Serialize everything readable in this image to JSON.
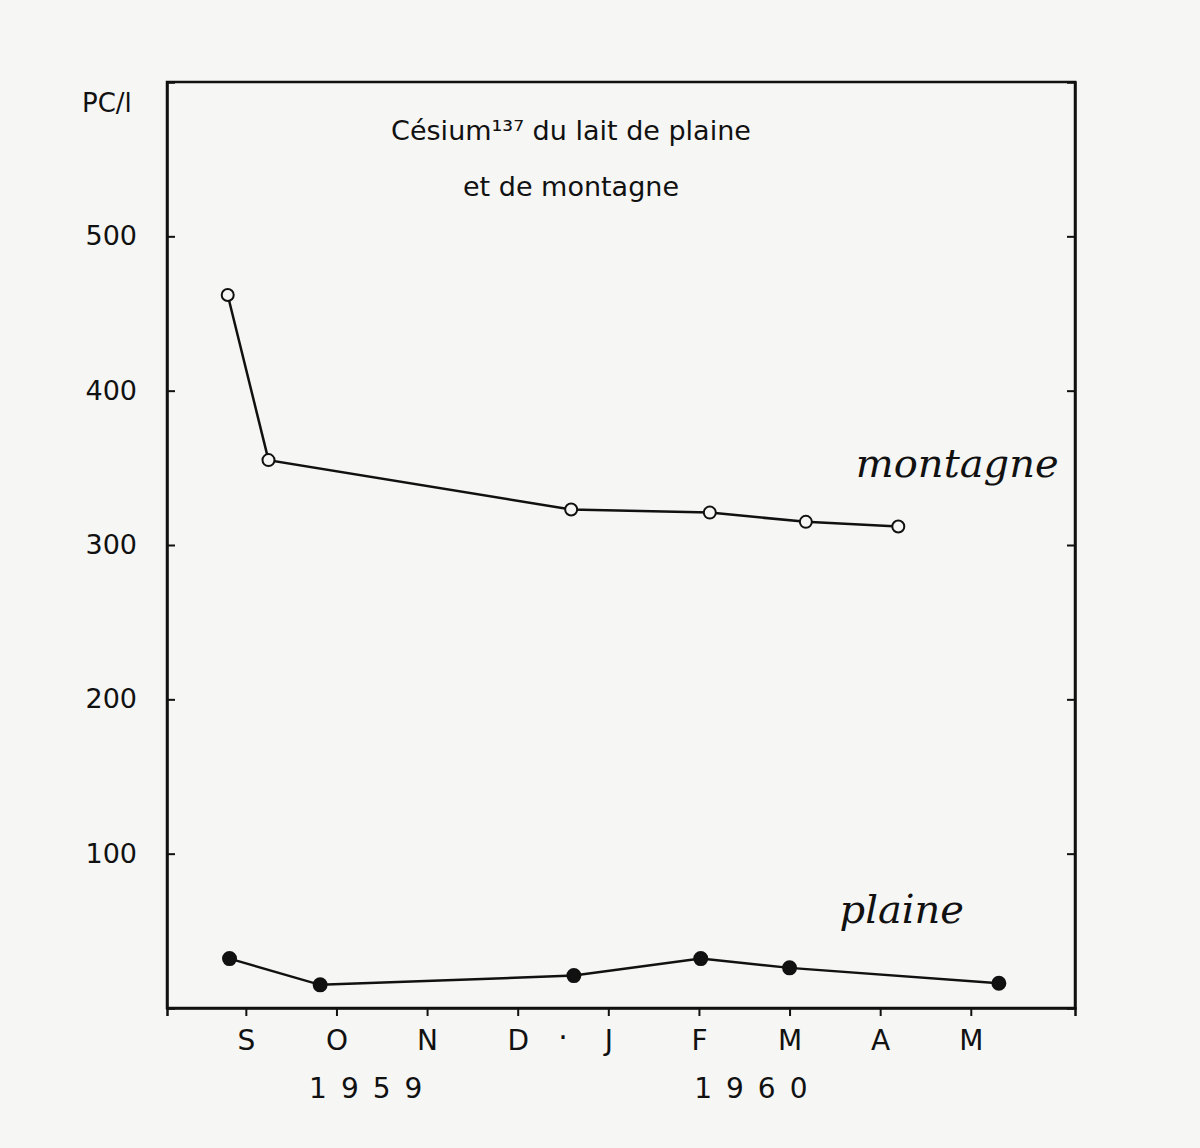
{
  "chart_data": {
    "type": "line",
    "title": "Césium¹³⁷ du lait de plaine\net de montagne",
    "y_label": "PC/l",
    "xlim": [
      -0.37,
      9.65
    ],
    "xticks": [
      {
        "value": 0.5,
        "label": "S"
      },
      {
        "value": 1.5,
        "label": "O"
      },
      {
        "value": 2.5,
        "label": "N"
      },
      {
        "value": 3.5,
        "label": "D"
      },
      {
        "value": 4.5,
        "label": "J"
      },
      {
        "value": 5.5,
        "label": "F"
      },
      {
        "value": 6.5,
        "label": "M"
      },
      {
        "value": 7.5,
        "label": "A"
      },
      {
        "value": 8.5,
        "label": "M"
      }
    ],
    "ylim": [
      0,
      600
    ],
    "yticks": [
      100,
      200,
      300,
      400,
      500
    ],
    "annotations": [
      {
        "text": "·",
        "x": 4.0
      },
      {
        "text": "1959",
        "x": 1.9
      },
      {
        "text": "1960",
        "x": 6.15
      }
    ],
    "series": [
      {
        "name": "montagne",
        "color": "#111111",
        "marker": "circle-open",
        "x": [
          0.3,
          0.75,
          4.09,
          5.62,
          6.68,
          7.7
        ],
        "values": [
          462,
          355,
          323,
          321,
          315,
          312
        ]
      },
      {
        "name": "plaine",
        "color": "#111111",
        "marker": "circle",
        "x": [
          0.32,
          1.32,
          4.12,
          5.52,
          6.5,
          8.81
        ],
        "values": [
          32,
          15,
          21,
          32,
          26,
          16
        ]
      }
    ]
  }
}
